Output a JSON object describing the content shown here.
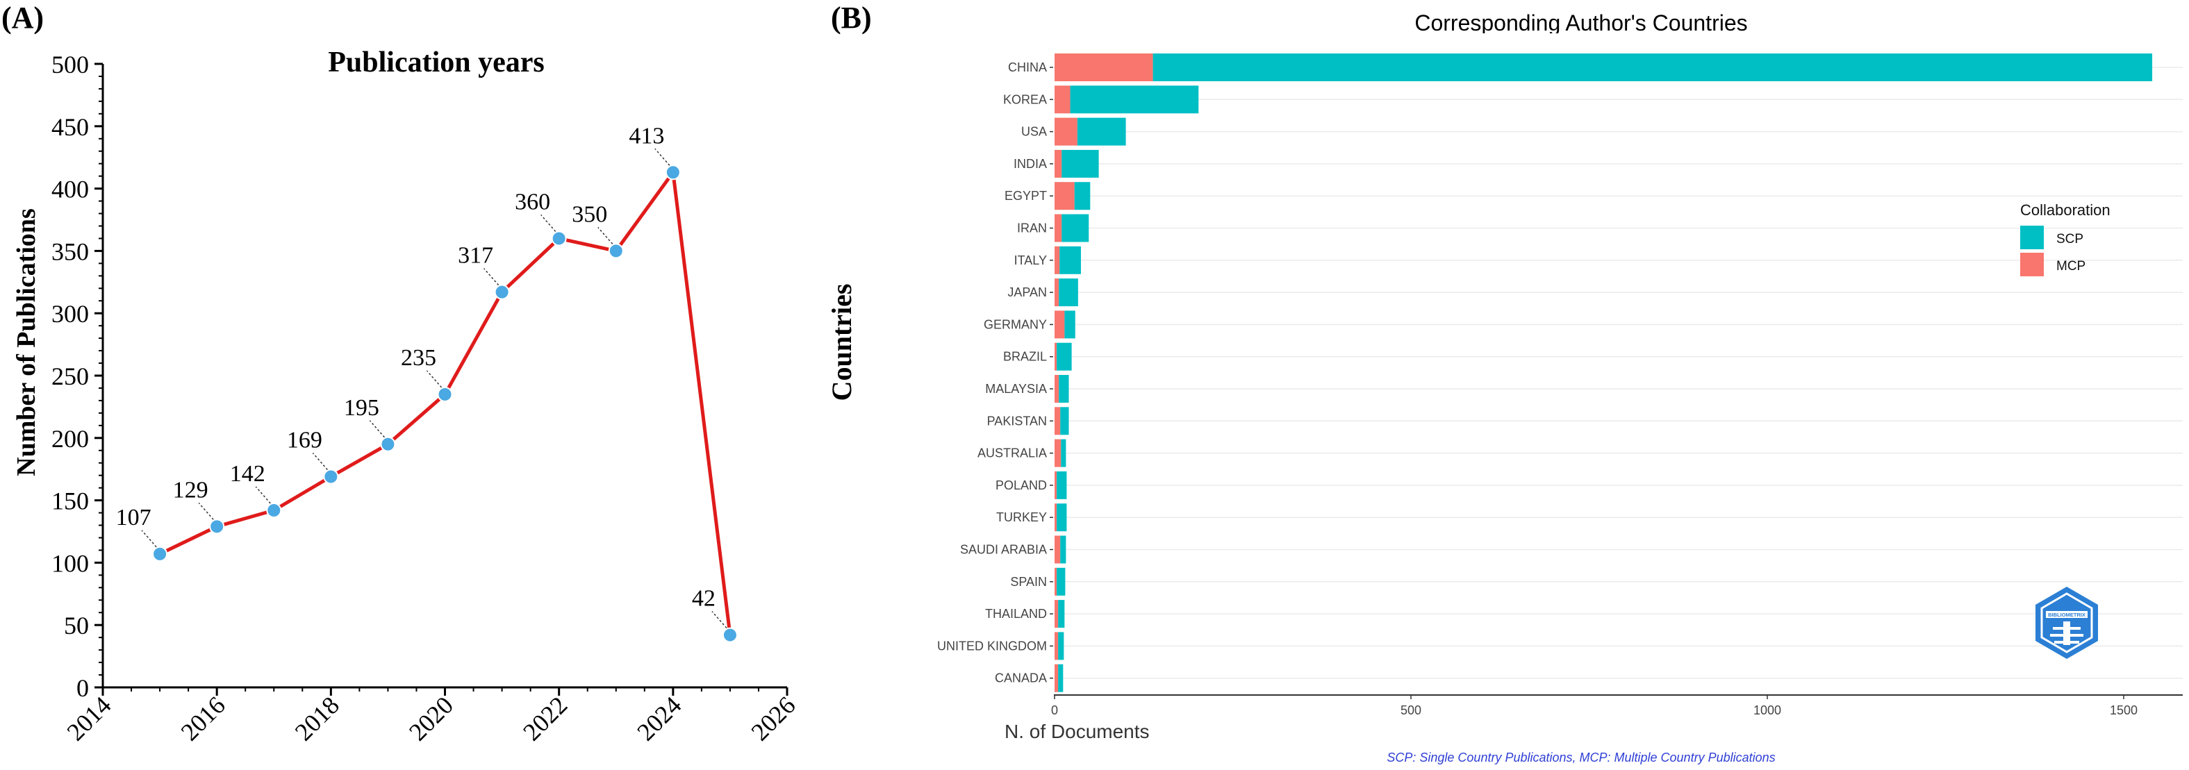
{
  "colors": {
    "line": "#e01b1b",
    "point": "#4aa8e3",
    "scp": "#00bfc4",
    "mcp": "#f8766d",
    "grid": "#ebebeb",
    "axis": "#000000",
    "caption": "#2f3fd6",
    "logo": "#2b7fd4"
  },
  "chart_data": [
    {
      "panel": "(A)",
      "type": "line",
      "title": "Publication years",
      "xlabel": "",
      "ylabel": "Number of Publications",
      "x": [
        2015,
        2016,
        2017,
        2018,
        2019,
        2020,
        2021,
        2022,
        2023,
        2024,
        2025
      ],
      "values": [
        107,
        129,
        142,
        169,
        195,
        235,
        317,
        360,
        350,
        413,
        42
      ],
      "xlim": [
        2014,
        2026
      ],
      "ylim": [
        0,
        500
      ],
      "xticks": [
        2014,
        2016,
        2018,
        2020,
        2022,
        2024,
        2026
      ],
      "yticks": [
        0,
        50,
        100,
        150,
        200,
        250,
        300,
        350,
        400,
        450,
        500
      ],
      "legend": "none"
    },
    {
      "panel": "(B)",
      "type": "bar",
      "orientation": "horizontal",
      "stacked": true,
      "title": "Corresponding Author's Countries",
      "xlabel": "N. of Documents",
      "ylabel": "Countries",
      "categories": [
        "CHINA",
        "KOREA",
        "USA",
        "INDIA",
        "EGYPT",
        "IRAN",
        "ITALY",
        "JAPAN",
        "GERMANY",
        "BRAZIL",
        "MALAYSIA",
        "PAKISTAN",
        "AUSTRALIA",
        "POLAND",
        "TURKEY",
        "SAUDI ARABIA",
        "SPAIN",
        "THAILAND",
        "UNITED KINGDOM",
        "CANADA"
      ],
      "series": [
        {
          "name": "MCP",
          "values": [
            138,
            22,
            32,
            10,
            28,
            10,
            7,
            6,
            14,
            3,
            6,
            8,
            9,
            3,
            3,
            8,
            3,
            5,
            5,
            5
          ]
        },
        {
          "name": "SCP",
          "values": [
            1402,
            180,
            68,
            52,
            22,
            38,
            30,
            27,
            15,
            21,
            14,
            12,
            7,
            14,
            14,
            8,
            12,
            9,
            8,
            7
          ]
        }
      ],
      "xlim": [
        0,
        1600
      ],
      "xticks": [
        0,
        500,
        1000,
        1500
      ],
      "legend_title": "Collaboration",
      "legend_entries": [
        "SCP",
        "MCP"
      ],
      "legend_position": "right",
      "caption": "SCP: Single Country Publications, MCP: Multiple Country Publications",
      "watermark": "BIBLIOMETRIX"
    }
  ]
}
